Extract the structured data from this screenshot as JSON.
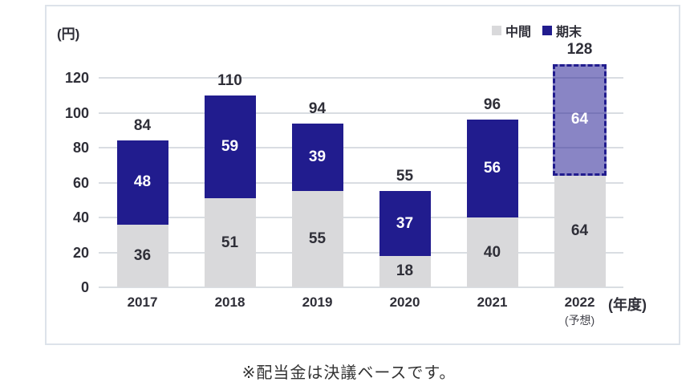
{
  "unit_label": "(円)",
  "legend": {
    "items": [
      {
        "label": "中間",
        "color": "#d9d9db"
      },
      {
        "label": "期末",
        "color": "#211c8e"
      }
    ]
  },
  "axis": {
    "x_suffix": "(年度)",
    "forecast_note": "(予想)"
  },
  "note": "※配当金は決議ベースです。",
  "chart_data": {
    "type": "bar",
    "stacked": true,
    "title": "",
    "ylabel": "(円)",
    "xlabel": "(年度)",
    "categories": [
      "2017",
      "2018",
      "2019",
      "2020",
      "2021",
      "2022"
    ],
    "series": [
      {
        "name": "中間",
        "values": [
          36,
          51,
          55,
          18,
          40,
          64
        ]
      },
      {
        "name": "期末",
        "values": [
          48,
          59,
          39,
          37,
          56,
          64
        ]
      }
    ],
    "totals": [
      84,
      110,
      94,
      55,
      96,
      128
    ],
    "forecast_index": 5,
    "forecast_category_note": "(予想)",
    "y_ticks": [
      0,
      20,
      40,
      60,
      80,
      100,
      120
    ],
    "ylim": [
      0,
      128
    ],
    "grid": true,
    "legend_position": "top-right",
    "colors": {
      "interim_fill": "#d9d9db",
      "final_fill": "#211c8e",
      "forecast_fill": "rgba(40,32,150,0.55)",
      "forecast_border": "#211c8e",
      "grid": "#d9dde2",
      "label_dark": "#2f2f38",
      "label_light": "#ffffff"
    }
  }
}
